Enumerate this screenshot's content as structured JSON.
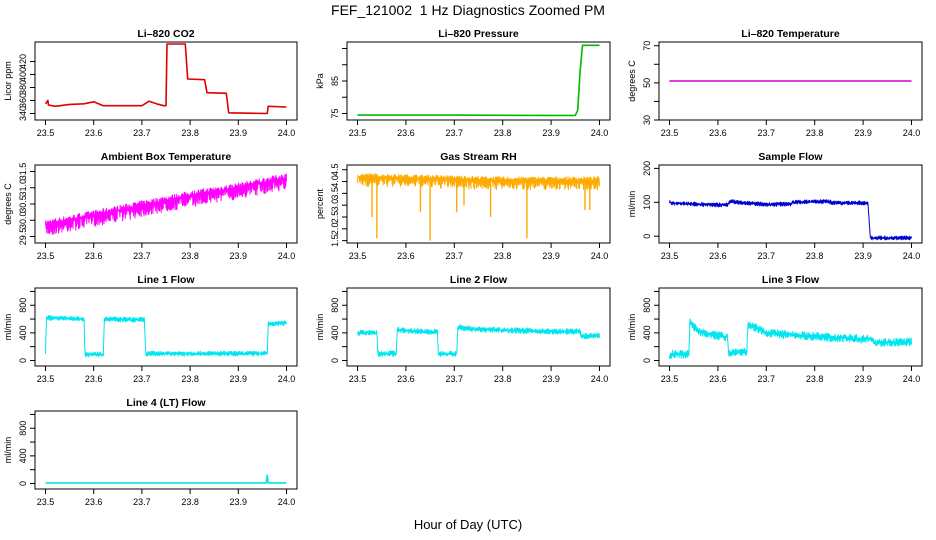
{
  "title": "FEF_121002  1 Hz Diagnostics Zoomed PM",
  "xlabel": "Hour of Day (UTC)",
  "chart_data": [
    {
      "type": "line",
      "title": "Li–820 CO2",
      "ylabel": "Licor ppm",
      "color": "#dd0000",
      "xlim": [
        23.5,
        24.0
      ],
      "ylim": [
        330,
        450
      ],
      "xticks": [
        23.5,
        23.6,
        23.7,
        23.8,
        23.9,
        24.0
      ],
      "yticks": [
        340,
        360,
        380,
        400,
        420
      ],
      "xtick_labels": [
        "23.5",
        "23.6",
        "23.7",
        "23.8",
        "23.9",
        "24.0"
      ],
      "ytick_labels": [
        "340",
        "360",
        "380",
        "400",
        "420"
      ],
      "series": [
        {
          "x": [
            23.5,
            23.505,
            23.506,
            23.52,
            23.55,
            23.58,
            23.6,
            23.62,
            23.65,
            23.68,
            23.7,
            23.715,
            23.73,
            23.745,
            23.75,
            23.752,
            23.79,
            23.795,
            23.83,
            23.835,
            23.875,
            23.88,
            23.96,
            23.962,
            24.0
          ],
          "y": [
            355,
            360,
            353,
            351,
            354,
            355,
            358,
            352,
            352,
            352,
            352,
            359,
            355,
            352,
            352,
            447,
            447,
            393,
            392,
            372,
            371,
            341,
            340,
            351,
            350
          ]
        }
      ]
    },
    {
      "type": "line",
      "title": "Li–820 Pressure",
      "ylabel": "kPa",
      "color": "#00bb00",
      "xlim": [
        23.5,
        24.0
      ],
      "ylim": [
        73,
        97
      ],
      "xticks": [
        23.5,
        23.6,
        23.7,
        23.8,
        23.9,
        24.0
      ],
      "yticks": [
        75,
        80,
        85,
        90,
        95
      ],
      "xtick_labels": [
        "23.5",
        "23.6",
        "23.7",
        "23.8",
        "23.9",
        "24.0"
      ],
      "ytick_labels": [
        "75",
        "",
        "85",
        "",
        ""
      ],
      "series": [
        {
          "x": [
            23.5,
            23.7,
            23.9,
            23.95,
            23.955,
            23.96,
            23.965,
            24.0
          ],
          "y": [
            74.5,
            74.5,
            74.4,
            74.4,
            76,
            88,
            96,
            96
          ]
        }
      ]
    },
    {
      "type": "line",
      "title": "Li–820 Temperature",
      "ylabel": "degrees C",
      "color": "#cc00cc",
      "xlim": [
        23.5,
        24.0
      ],
      "ylim": [
        30,
        72
      ],
      "xticks": [
        23.5,
        23.6,
        23.7,
        23.8,
        23.9,
        24.0
      ],
      "yticks": [
        30,
        40,
        50,
        60,
        70
      ],
      "xtick_labels": [
        "23.5",
        "23.6",
        "23.7",
        "23.8",
        "23.9",
        "24.0"
      ],
      "ytick_labels": [
        "30",
        "",
        "50",
        "",
        "70"
      ],
      "series": [
        {
          "x": [
            23.5,
            24.0
          ],
          "y": [
            51,
            51
          ]
        }
      ]
    },
    {
      "type": "line",
      "title": "Ambient Box Temperature",
      "ylabel": "degrees C",
      "color": "#ff00ff",
      "xlim": [
        23.5,
        24.0
      ],
      "ylim": [
        29.3,
        31.7
      ],
      "xticks": [
        23.5,
        23.6,
        23.7,
        23.8,
        23.9,
        24.0
      ],
      "yticks": [
        29.5,
        30.0,
        30.5,
        31.0,
        31.5
      ],
      "xtick_labels": [
        "23.5",
        "23.6",
        "23.7",
        "23.8",
        "23.9",
        "24.0"
      ],
      "ytick_labels": [
        "29.5",
        "30.0",
        "30.5",
        "31.0",
        "31.5"
      ],
      "series": [
        {
          "x": [
            23.5,
            23.6,
            23.7,
            23.8,
            23.9,
            24.0
          ],
          "y": [
            29.85,
            30.15,
            30.45,
            30.75,
            31.0,
            31.3
          ],
          "noise_low": 0.35,
          "noise_high": 0.15
        }
      ]
    },
    {
      "type": "line",
      "title": "Gas Stream RH",
      "ylabel": "percent",
      "color": "#ffaa00",
      "xlim": [
        23.5,
        24.0
      ],
      "ylim": [
        1.4,
        4.7
      ],
      "xticks": [
        23.5,
        23.6,
        23.7,
        23.8,
        23.9,
        24.0
      ],
      "yticks": [
        1.5,
        2.0,
        2.5,
        3.0,
        3.5,
        4.0,
        4.5
      ],
      "xtick_labels": [
        "23.5",
        "23.6",
        "23.7",
        "23.8",
        "23.9",
        "24.0"
      ],
      "ytick_labels": [
        "1.5",
        "2.0",
        "2.5",
        "3.0",
        "3.5",
        "4.0",
        "4.5"
      ],
      "series": [
        {
          "x": [
            23.5,
            23.6,
            23.7,
            23.8,
            23.9,
            24.0
          ],
          "y": [
            4.2,
            4.15,
            4.1,
            4.05,
            4.05,
            4.05
          ],
          "noise_low": 0.4,
          "noise_high": 0.15,
          "spikes": [
            [
              23.53,
              2.5
            ],
            [
              23.54,
              1.6
            ],
            [
              23.63,
              2.7
            ],
            [
              23.65,
              1.5
            ],
            [
              23.705,
              2.7
            ],
            [
              23.72,
              3.0
            ],
            [
              23.775,
              2.5
            ],
            [
              23.85,
              1.6
            ],
            [
              23.97,
              2.8
            ],
            [
              23.98,
              2.8
            ]
          ]
        }
      ]
    },
    {
      "type": "line",
      "title": "Sample Flow",
      "ylabel": "ml/min",
      "color": "#0000cc",
      "xlim": [
        23.5,
        24.0
      ],
      "ylim": [
        -20,
        210
      ],
      "xticks": [
        23.5,
        23.6,
        23.7,
        23.8,
        23.9,
        24.0
      ],
      "yticks": [
        0,
        100,
        200
      ],
      "xtick_labels": [
        "23.5",
        "23.6",
        "23.7",
        "23.8",
        "23.9",
        "24.0"
      ],
      "ytick_labels": [
        "0",
        "100",
        "200"
      ],
      "series": [
        {
          "x": [
            23.5,
            23.505,
            23.55,
            23.6,
            23.62,
            23.625,
            23.65,
            23.7,
            23.75,
            23.755,
            23.8,
            23.83,
            23.835,
            23.91,
            23.915,
            24.0
          ],
          "y": [
            100,
            97,
            95,
            92,
            93,
            103,
            98,
            94,
            95,
            100,
            102,
            103,
            98,
            98,
            -5,
            -5
          ],
          "noise_low": 6,
          "noise_high": 6
        }
      ]
    },
    {
      "type": "line",
      "title": "Line 1 Flow",
      "ylabel": "ml/min",
      "color": "#00e5ee",
      "xlim": [
        23.5,
        24.0
      ],
      "ylim": [
        -80,
        1050
      ],
      "xticks": [
        23.5,
        23.6,
        23.7,
        23.8,
        23.9,
        24.0
      ],
      "yticks": [
        0,
        200,
        400,
        600,
        800,
        1000
      ],
      "xtick_labels": [
        "23.5",
        "23.6",
        "23.7",
        "23.8",
        "23.9",
        "24.0"
      ],
      "ytick_labels": [
        "0",
        "",
        "400",
        "",
        "800",
        ""
      ],
      "series": [
        {
          "x": [
            23.5,
            23.502,
            23.58,
            23.582,
            23.62,
            23.622,
            23.705,
            23.708,
            23.96,
            23.962,
            24.0
          ],
          "y": [
            120,
            620,
            600,
            90,
            90,
            600,
            590,
            100,
            100,
            530,
            540
          ],
          "noise_low": 35,
          "noise_high": 35
        }
      ]
    },
    {
      "type": "line",
      "title": "Line 2 Flow",
      "ylabel": "ml/min",
      "color": "#00e5ee",
      "xlim": [
        23.5,
        24.0
      ],
      "ylim": [
        -80,
        1050
      ],
      "xticks": [
        23.5,
        23.6,
        23.7,
        23.8,
        23.9,
        24.0
      ],
      "yticks": [
        0,
        200,
        400,
        600,
        800,
        1000
      ],
      "xtick_labels": [
        "23.5",
        "23.6",
        "23.7",
        "23.8",
        "23.9",
        "24.0"
      ],
      "ytick_labels": [
        "0",
        "",
        "400",
        "",
        "800",
        ""
      ],
      "series": [
        {
          "x": [
            23.5,
            23.502,
            23.54,
            23.542,
            23.58,
            23.582,
            23.665,
            23.667,
            23.705,
            23.707,
            23.75,
            23.8,
            23.85,
            23.9,
            23.96,
            23.962,
            24.0
          ],
          "y": [
            390,
            400,
            400,
            100,
            100,
            440,
            410,
            100,
            100,
            480,
            450,
            440,
            430,
            420,
            420,
            350,
            360
          ],
          "noise_low": 40,
          "noise_high": 40
        }
      ]
    },
    {
      "type": "line",
      "title": "Line 3 Flow",
      "ylabel": "ml/min",
      "color": "#00e5ee",
      "xlim": [
        23.5,
        24.0
      ],
      "ylim": [
        -80,
        1050
      ],
      "xticks": [
        23.5,
        23.6,
        23.7,
        23.8,
        23.9,
        24.0
      ],
      "yticks": [
        0,
        200,
        400,
        600,
        800,
        1000
      ],
      "xtick_labels": [
        "23.5",
        "23.6",
        "23.7",
        "23.8",
        "23.9",
        "24.0"
      ],
      "ytick_labels": [
        "0",
        "",
        "400",
        "",
        "800",
        ""
      ],
      "series": [
        {
          "x": [
            23.5,
            23.502,
            23.54,
            23.542,
            23.56,
            23.6,
            23.62,
            23.622,
            23.66,
            23.662,
            23.7,
            23.75,
            23.8,
            23.85,
            23.9,
            23.92,
            23.922,
            24.0
          ],
          "y": [
            60,
            90,
            90,
            550,
            420,
            360,
            340,
            110,
            130,
            520,
            400,
            370,
            350,
            330,
            310,
            310,
            260,
            270
          ],
          "noise_low": 60,
          "noise_high": 60
        }
      ]
    },
    {
      "type": "line",
      "title": "Line 4 (LT) Flow",
      "ylabel": "ml/min",
      "color": "#00e5ee",
      "xlim": [
        23.5,
        24.0
      ],
      "ylim": [
        -80,
        1050
      ],
      "xticks": [
        23.5,
        23.6,
        23.7,
        23.8,
        23.9,
        24.0
      ],
      "yticks": [
        0,
        200,
        400,
        600,
        800,
        1000
      ],
      "xtick_labels": [
        "23.5",
        "23.6",
        "23.7",
        "23.8",
        "23.9",
        "24.0"
      ],
      "ytick_labels": [
        "0",
        "",
        "400",
        "",
        "800",
        ""
      ],
      "series": [
        {
          "x": [
            23.5,
            23.958,
            23.96,
            23.962,
            24.0
          ],
          "y": [
            8,
            8,
            120,
            8,
            8
          ]
        }
      ]
    }
  ]
}
